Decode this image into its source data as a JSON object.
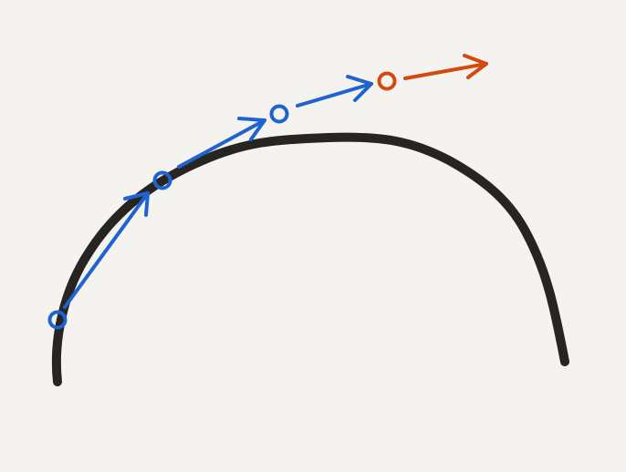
{
  "canvas": {
    "background": "#f5f3f0"
  },
  "colors": {
    "curve": "#262522",
    "step_arrow": "#1f63d0",
    "final_arrow": "#d24a0f"
  },
  "diagram": {
    "curve": {
      "description_icon": "hand-drawn-arc"
    },
    "blue_steps": {
      "marker": "circle",
      "count": 4
    },
    "final_step": {
      "marker": "circle",
      "count": 1
    }
  }
}
